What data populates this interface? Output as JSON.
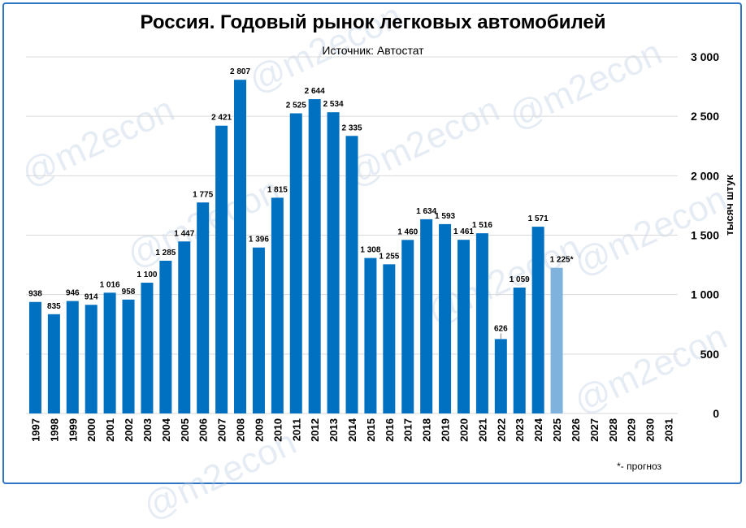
{
  "chart_data": {
    "type": "bar",
    "title": "Россия. Годовый рынок легковых автомобилей",
    "subtitle": "Источник: Автостат",
    "ylabel": "тысяч штук",
    "footnote": "*- прогноз",
    "watermark": "@m2econ",
    "ylim": [
      0,
      3000
    ],
    "yticks": [
      "0",
      "500",
      "1 000",
      "1 500",
      "2 000",
      "2 500",
      "3 000"
    ],
    "ytick_values": [
      0,
      500,
      1000,
      1500,
      2000,
      2500,
      3000
    ],
    "categories": [
      "1997",
      "1998",
      "1999",
      "2000",
      "2001",
      "2002",
      "2003",
      "2004",
      "2005",
      "2006",
      "2007",
      "2008",
      "2009",
      "2010",
      "2011",
      "2012",
      "2013",
      "2014",
      "2015",
      "2016",
      "2017",
      "2018",
      "2019",
      "2020",
      "2021",
      "2022",
      "2023",
      "2024",
      "2025",
      "2026",
      "2027",
      "2028",
      "2029",
      "2030",
      "2031"
    ],
    "values": [
      938,
      835,
      946,
      914,
      1016,
      958,
      1100,
      1285,
      1447,
      1775,
      2421,
      2807,
      1396,
      1815,
      2525,
      2644,
      2534,
      2335,
      1308,
      1255,
      1460,
      1634,
      1593,
      1461,
      1516,
      626,
      1059,
      1571,
      1225,
      null,
      null,
      null,
      null,
      null,
      null
    ],
    "labels": [
      "938",
      "835",
      "946",
      "914",
      "1 016",
      "958",
      "1 100",
      "1 285",
      "1 447",
      "1 775",
      "2 421",
      "2 807",
      "1 396",
      "1 815",
      "2 525",
      "2 644",
      "2 534",
      "2 335",
      "1 308",
      "1 255",
      "1 460",
      "1 634",
      "1 593",
      "1 461",
      "1 516",
      "626",
      "1 059",
      "1 571",
      "1 225*",
      "",
      "",
      "",
      "",
      "",
      ""
    ],
    "forecast_index": 28,
    "colors": {
      "bar": "#0070c0",
      "forecast": "#7fb2dd",
      "grid": "#d9d9d9",
      "frame": "#2e75c4"
    },
    "grid": true
  }
}
